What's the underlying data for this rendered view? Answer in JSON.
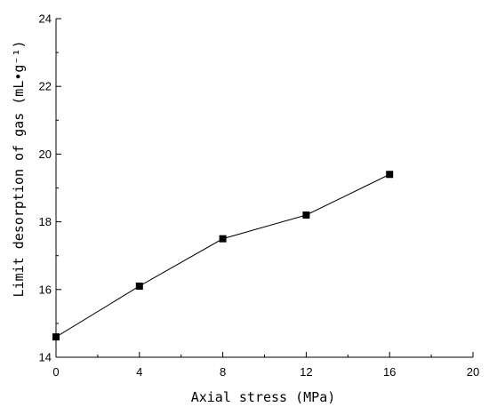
{
  "chart_data": {
    "type": "line",
    "title": "",
    "xlabel": "Axial stress (MPa)",
    "ylabel": "Limit desorption of gas (mL•g⁻¹)",
    "xlim": [
      0,
      20
    ],
    "ylim": [
      14,
      24
    ],
    "x_ticks": [
      "0",
      "4",
      "8",
      "12",
      "16",
      "20"
    ],
    "y_ticks": [
      "14",
      "16",
      "18",
      "20",
      "22",
      "24"
    ],
    "grid": false,
    "legend": "none",
    "marker": "square",
    "line_color": "#000000",
    "marker_color": "#000000",
    "series": [
      {
        "x": [
          0,
          4,
          8,
          12,
          16
        ],
        "values": [
          14.6,
          16.1,
          17.5,
          18.2,
          19.4
        ]
      }
    ]
  }
}
